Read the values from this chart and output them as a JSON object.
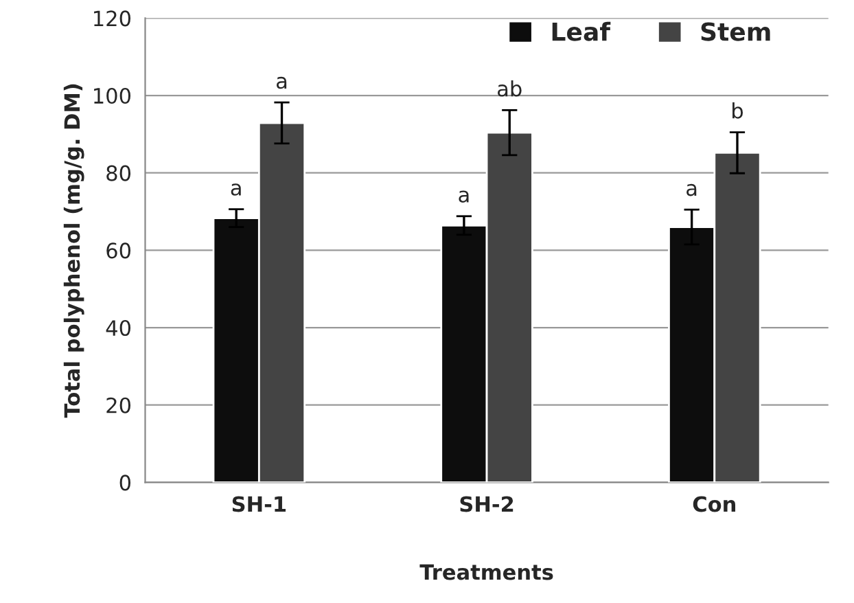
{
  "chart_data": {
    "type": "bar",
    "xlabel": "Treatments",
    "ylabel": "Total polyphenol (mg/g. DM)",
    "categories": [
      "SH-1",
      "SH-2",
      "Con"
    ],
    "series": [
      {
        "name": "Leaf",
        "color": "#0d0d0d",
        "values": [
          68.3,
          66.4,
          66.0
        ],
        "errors": [
          2.3,
          2.4,
          4.5
        ]
      },
      {
        "name": "Stem",
        "color": "#444444",
        "values": [
          92.9,
          90.4,
          85.2
        ],
        "errors": [
          5.3,
          5.8,
          5.3
        ]
      }
    ],
    "annotations": [
      "a",
      "a",
      "a",
      "ab",
      "a",
      "b"
    ],
    "ylim": [
      0,
      120
    ],
    "yticks": [
      0,
      20,
      40,
      60,
      80,
      100,
      120
    ],
    "grid": "y",
    "legend": "top right"
  }
}
